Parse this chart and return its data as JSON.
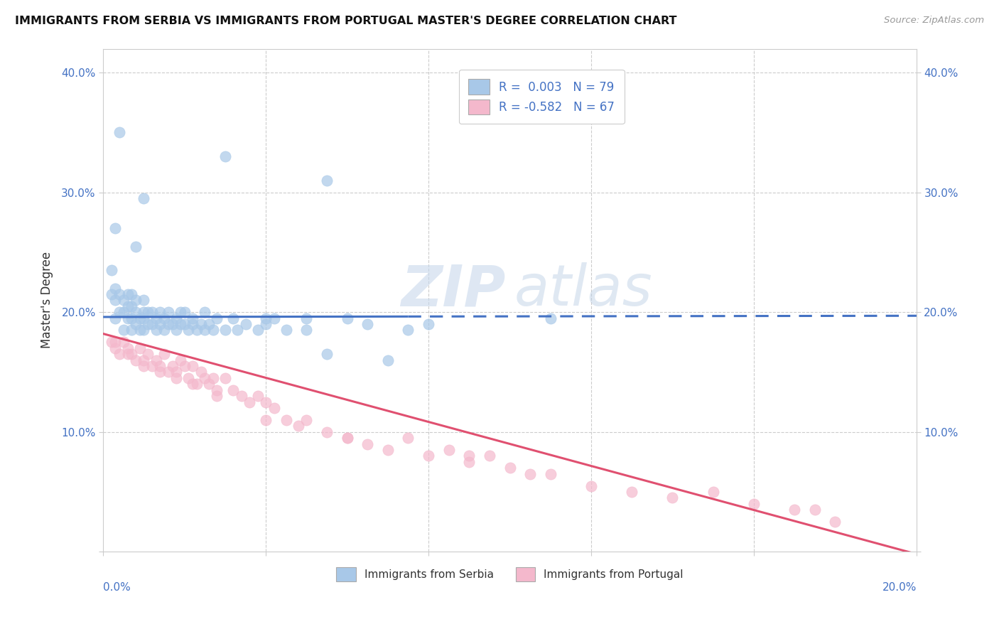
{
  "title": "IMMIGRANTS FROM SERBIA VS IMMIGRANTS FROM PORTUGAL MASTER'S DEGREE CORRELATION CHART",
  "source_text": "Source: ZipAtlas.com",
  "ylabel": "Master's Degree",
  "xlim": [
    0.0,
    0.2
  ],
  "ylim": [
    0.0,
    0.42
  ],
  "serbia_R": 0.003,
  "serbia_N": 79,
  "portugal_R": -0.582,
  "portugal_N": 67,
  "serbia_color": "#a8c8e8",
  "portugal_color": "#f4b8cc",
  "serbia_line_color": "#4472c4",
  "portugal_line_color": "#e05070",
  "legend_serbia_label": "R =  0.003   N = 79",
  "legend_portugal_label": "R = -0.582   N = 67",
  "serbia_line_intercept": 0.196,
  "serbia_line_slope": 0.005,
  "serbia_line_solid_end": 0.075,
  "portugal_line_intercept": 0.182,
  "portugal_line_slope": -0.92,
  "serbia_x": [
    0.002,
    0.002,
    0.003,
    0.003,
    0.003,
    0.004,
    0.004,
    0.005,
    0.005,
    0.005,
    0.006,
    0.006,
    0.006,
    0.007,
    0.007,
    0.007,
    0.007,
    0.008,
    0.008,
    0.008,
    0.009,
    0.009,
    0.01,
    0.01,
    0.01,
    0.01,
    0.011,
    0.011,
    0.012,
    0.012,
    0.013,
    0.013,
    0.014,
    0.014,
    0.015,
    0.015,
    0.016,
    0.016,
    0.017,
    0.018,
    0.018,
    0.019,
    0.02,
    0.02,
    0.021,
    0.022,
    0.023,
    0.024,
    0.025,
    0.026,
    0.027,
    0.028,
    0.03,
    0.032,
    0.033,
    0.035,
    0.038,
    0.04,
    0.042,
    0.045,
    0.05,
    0.055,
    0.06,
    0.065,
    0.07,
    0.075,
    0.08,
    0.003,
    0.004,
    0.008,
    0.01,
    0.019,
    0.022,
    0.025,
    0.03,
    0.04,
    0.05,
    0.055,
    0.11
  ],
  "serbia_y": [
    0.215,
    0.235,
    0.195,
    0.21,
    0.22,
    0.2,
    0.215,
    0.185,
    0.2,
    0.21,
    0.195,
    0.205,
    0.215,
    0.185,
    0.195,
    0.205,
    0.215,
    0.19,
    0.2,
    0.21,
    0.185,
    0.195,
    0.185,
    0.195,
    0.2,
    0.21,
    0.19,
    0.2,
    0.19,
    0.2,
    0.185,
    0.195,
    0.19,
    0.2,
    0.185,
    0.195,
    0.19,
    0.2,
    0.19,
    0.185,
    0.195,
    0.19,
    0.19,
    0.2,
    0.185,
    0.19,
    0.185,
    0.19,
    0.185,
    0.19,
    0.185,
    0.195,
    0.185,
    0.195,
    0.185,
    0.19,
    0.185,
    0.19,
    0.195,
    0.185,
    0.185,
    0.165,
    0.195,
    0.19,
    0.16,
    0.185,
    0.19,
    0.27,
    0.35,
    0.255,
    0.295,
    0.2,
    0.195,
    0.2,
    0.33,
    0.195,
    0.195,
    0.31,
    0.195
  ],
  "portugal_x": [
    0.002,
    0.003,
    0.004,
    0.005,
    0.006,
    0.007,
    0.008,
    0.009,
    0.01,
    0.011,
    0.012,
    0.013,
    0.014,
    0.015,
    0.016,
    0.017,
    0.018,
    0.019,
    0.02,
    0.021,
    0.022,
    0.023,
    0.024,
    0.025,
    0.026,
    0.027,
    0.028,
    0.03,
    0.032,
    0.034,
    0.036,
    0.038,
    0.04,
    0.042,
    0.045,
    0.048,
    0.05,
    0.055,
    0.06,
    0.065,
    0.07,
    0.075,
    0.08,
    0.085,
    0.09,
    0.095,
    0.1,
    0.105,
    0.11,
    0.12,
    0.13,
    0.14,
    0.15,
    0.16,
    0.17,
    0.175,
    0.18,
    0.003,
    0.006,
    0.01,
    0.014,
    0.018,
    0.022,
    0.028,
    0.04,
    0.06,
    0.09
  ],
  "portugal_y": [
    0.175,
    0.17,
    0.165,
    0.175,
    0.17,
    0.165,
    0.16,
    0.17,
    0.16,
    0.165,
    0.155,
    0.16,
    0.155,
    0.165,
    0.15,
    0.155,
    0.15,
    0.16,
    0.155,
    0.145,
    0.155,
    0.14,
    0.15,
    0.145,
    0.14,
    0.145,
    0.135,
    0.145,
    0.135,
    0.13,
    0.125,
    0.13,
    0.125,
    0.12,
    0.11,
    0.105,
    0.11,
    0.1,
    0.095,
    0.09,
    0.085,
    0.095,
    0.08,
    0.085,
    0.075,
    0.08,
    0.07,
    0.065,
    0.065,
    0.055,
    0.05,
    0.045,
    0.05,
    0.04,
    0.035,
    0.035,
    0.025,
    0.175,
    0.165,
    0.155,
    0.15,
    0.145,
    0.14,
    0.13,
    0.11,
    0.095,
    0.08
  ]
}
